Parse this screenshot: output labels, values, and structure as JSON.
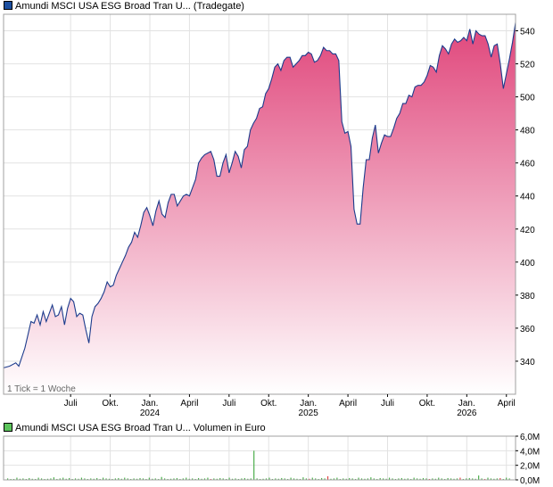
{
  "colors": {
    "price_line": "#1c3b8c",
    "price_fill_top": "#e0467b",
    "price_fill_bottom": "#ffffff",
    "grid": "#e2e2e2",
    "frame": "#a0a0a0",
    "volume_bar": "#4caf4c",
    "volume_bar_red": "#e04646",
    "legend_price": "#1c4fa0",
    "legend_volume": "#5cc45c"
  },
  "price_chart": {
    "legend": "Amundi MSCI USA ESG Broad Tran U... (Tradegate)",
    "tick_note": "1 Tick = 1 Woche"
  },
  "volume_chart": {
    "legend": "Amundi MSCI USA ESG Broad Tran U... Volumen in Euro"
  },
  "chart_data": [
    {
      "type": "area",
      "title": "Amundi MSCI USA ESG Broad Tran U... (Tradegate)",
      "ylim": [
        320,
        550
      ],
      "y_ticks": [
        340,
        360,
        380,
        400,
        420,
        440,
        460,
        480,
        500,
        520,
        540
      ],
      "x_ticks": [
        {
          "label": "Juli",
          "year": "",
          "t": 22
        },
        {
          "label": "Okt.",
          "year": "",
          "t": 35
        },
        {
          "label": "Jan.",
          "year": "2024",
          "t": 48
        },
        {
          "label": "April",
          "year": "",
          "t": 61
        },
        {
          "label": "Juli",
          "year": "",
          "t": 74
        },
        {
          "label": "Okt.",
          "year": "",
          "t": 87
        },
        {
          "label": "Jan.",
          "year": "2025",
          "t": 100
        },
        {
          "label": "April",
          "year": "",
          "t": 113
        },
        {
          "label": "Juli",
          "year": "",
          "t": 126
        },
        {
          "label": "Okt.",
          "year": "",
          "t": 139
        },
        {
          "label": "Jan.",
          "year": "2026",
          "t": 152
        },
        {
          "label": "April",
          "year": "",
          "t": 165
        }
      ],
      "t_range": [
        0,
        168
      ],
      "grid": true,
      "series": [
        {
          "points": [
            [
              0,
              336
            ],
            [
              2,
              337
            ],
            [
              4,
              339
            ],
            [
              5,
              337
            ],
            [
              7,
              348
            ],
            [
              8,
              356
            ],
            [
              9,
              364
            ],
            [
              10,
              363
            ],
            [
              11,
              368
            ],
            [
              12,
              362
            ],
            [
              13,
              370
            ],
            [
              14,
              364
            ],
            [
              16,
              374
            ],
            [
              17,
              367
            ],
            [
              18,
              368
            ],
            [
              19,
              373
            ],
            [
              20,
              362
            ],
            [
              21,
              372
            ],
            [
              22,
              378
            ],
            [
              23,
              376
            ],
            [
              24,
              367
            ],
            [
              25,
              369
            ],
            [
              26,
              368
            ],
            [
              27,
              359
            ],
            [
              28,
              351
            ],
            [
              29,
              367
            ],
            [
              30,
              373
            ],
            [
              31,
              375
            ],
            [
              32,
              378
            ],
            [
              33,
              382
            ],
            [
              34,
              388
            ],
            [
              35,
              385
            ],
            [
              36,
              386
            ],
            [
              37,
              392
            ],
            [
              38,
              396
            ],
            [
              39,
              400
            ],
            [
              40,
              404
            ],
            [
              41,
              409
            ],
            [
              42,
              412
            ],
            [
              43,
              418
            ],
            [
              44,
              415
            ],
            [
              45,
              422
            ],
            [
              46,
              430
            ],
            [
              47,
              433
            ],
            [
              48,
              428
            ],
            [
              49,
              422
            ],
            [
              50,
              431
            ],
            [
              51,
              437
            ],
            [
              52,
              429
            ],
            [
              53,
              427
            ],
            [
              54,
              436
            ],
            [
              55,
              441
            ],
            [
              56,
              441
            ],
            [
              57,
              434
            ],
            [
              58,
              437
            ],
            [
              59,
              440
            ],
            [
              60,
              441
            ],
            [
              61,
              440
            ],
            [
              62,
              445
            ],
            [
              63,
              450
            ],
            [
              64,
              460
            ],
            [
              65,
              463
            ],
            [
              66,
              465
            ],
            [
              67,
              466
            ],
            [
              68,
              467
            ],
            [
              69,
              462
            ],
            [
              70,
              452
            ],
            [
              71,
              452
            ],
            [
              72,
              460
            ],
            [
              73,
              465
            ],
            [
              74,
              454
            ],
            [
              75,
              460
            ],
            [
              76,
              467
            ],
            [
              77,
              464
            ],
            [
              78,
              457
            ],
            [
              79,
              468
            ],
            [
              80,
              470
            ],
            [
              81,
              480
            ],
            [
              82,
              484
            ],
            [
              83,
              487
            ],
            [
              84,
              493
            ],
            [
              85,
              494
            ],
            [
              86,
              502
            ],
            [
              87,
              505
            ],
            [
              88,
              511
            ],
            [
              89,
              518
            ],
            [
              90,
              520
            ],
            [
              91,
              516
            ],
            [
              92,
              522
            ],
            [
              93,
              524
            ],
            [
              94,
              524
            ],
            [
              95,
              518
            ],
            [
              96,
              520
            ],
            [
              97,
              522
            ],
            [
              98,
              525
            ],
            [
              99,
              525
            ],
            [
              100,
              527
            ],
            [
              101,
              526
            ],
            [
              102,
              521
            ],
            [
              103,
              522
            ],
            [
              104,
              525
            ],
            [
              105,
              530
            ],
            [
              106,
              528
            ],
            [
              107,
              528
            ],
            [
              108,
              526
            ],
            [
              109,
              526
            ],
            [
              110,
              522
            ],
            [
              111,
              485
            ],
            [
              112,
              478
            ],
            [
              113,
              479
            ],
            [
              114,
              470
            ],
            [
              115,
              432
            ],
            [
              116,
              423
            ],
            [
              117,
              423
            ],
            [
              118,
              445
            ],
            [
              119,
              462
            ],
            [
              120,
              462
            ],
            [
              121,
              475
            ],
            [
              122,
              483
            ],
            [
              123,
              466
            ],
            [
              124,
              472
            ],
            [
              125,
              477
            ],
            [
              126,
              476
            ],
            [
              127,
              476
            ],
            [
              128,
              481
            ],
            [
              129,
              487
            ],
            [
              130,
              490
            ],
            [
              131,
              496
            ],
            [
              132,
              496
            ],
            [
              133,
              501
            ],
            [
              134,
              500
            ],
            [
              135,
              506
            ],
            [
              136,
              507
            ],
            [
              137,
              507
            ],
            [
              138,
              509
            ],
            [
              139,
              513
            ],
            [
              140,
              519
            ],
            [
              141,
              518
            ],
            [
              142,
              515
            ],
            [
              143,
              525
            ],
            [
              144,
              531
            ],
            [
              145,
              529
            ],
            [
              146,
              526
            ],
            [
              147,
              532
            ],
            [
              148,
              535
            ],
            [
              149,
              533
            ],
            [
              150,
              534
            ],
            [
              151,
              536
            ],
            [
              152,
              534
            ],
            [
              153,
              541
            ],
            [
              154,
              532
            ],
            [
              155,
              540
            ],
            [
              156,
              538
            ],
            [
              157,
              537
            ],
            [
              158,
              537
            ],
            [
              159,
              532
            ],
            [
              160,
              524
            ],
            [
              161,
              531
            ],
            [
              162,
              532
            ],
            [
              163,
              520
            ],
            [
              164,
              505
            ],
            [
              165,
              514
            ],
            [
              166,
              523
            ],
            [
              167,
              533
            ],
            [
              168,
              545
            ]
          ]
        }
      ]
    },
    {
      "type": "bar",
      "title": "Amundi MSCI USA ESG Broad Tran U... Volumen in Euro",
      "ylim": [
        0,
        6
      ],
      "y_unit": "M",
      "y_ticks": [
        {
          "v": 0,
          "label": "0,0M"
        },
        {
          "v": 2,
          "label": "2,0M"
        },
        {
          "v": 4,
          "label": "4,0M"
        },
        {
          "v": 6,
          "label": "6,0M"
        }
      ],
      "series": [
        {
          "values": [
            0.2,
            0.1,
            0.1,
            0.3,
            0.15,
            0.2,
            0.1,
            0.25,
            0.15,
            0.1,
            0.3,
            0.2,
            0.1,
            0.15,
            0.2,
            0.35,
            0.1,
            0.2,
            0.3,
            0.15,
            0.25,
            0.1,
            0.2,
            0.15,
            0.3,
            0.2,
            0.1,
            0.2,
            0.15,
            0.25,
            0.1,
            0.3,
            0.2,
            0.15,
            0.1,
            0.2,
            0.25,
            0.15,
            0.3,
            0.2,
            0.1,
            0.2,
            0.15,
            0.25,
            0.2,
            0.1,
            0.3,
            0.15,
            0.2,
            0.1,
            0.4,
            0.2,
            0.1,
            0.15,
            0.2,
            0.25,
            0.1,
            0.2,
            0.3,
            0.15,
            0.2,
            0.1,
            0.25,
            0.15,
            0.2,
            0.3,
            0.1,
            0.2,
            0.15,
            0.25,
            0.2,
            0.1,
            0.3,
            0.15,
            0.2,
            0.1,
            0.2,
            0.25,
            0.15,
            0.2,
            4.0,
            0.2,
            0.1,
            0.15,
            0.2,
            0.3,
            0.1,
            0.2,
            0.15,
            0.25,
            0.2,
            0.1,
            0.3,
            0.2,
            0.15,
            0.1,
            0.35,
            0.2,
            0.15,
            0.3,
            0.2,
            0.1,
            0.25,
            0.2,
            0.5,
            0.15,
            0.2,
            0.3,
            0.1,
            0.2,
            0.15,
            0.25,
            0.2,
            0.1,
            0.3,
            0.2,
            0.15,
            0.2,
            0.35,
            0.2,
            0.1,
            0.25,
            0.2,
            0.15,
            0.3,
            0.2,
            0.1,
            0.2,
            0.25,
            0.15,
            0.2,
            0.1,
            0.3,
            0.2,
            0.15,
            0.25,
            0.2,
            0.1,
            0.2,
            0.15,
            0.3,
            0.2,
            0.1,
            0.25,
            0.2,
            0.15,
            0.2,
            0.3,
            0.1,
            0.2,
            0.25,
            0.2,
            0.15,
            0.6,
            0.2,
            0.1,
            0.3,
            0.2,
            0.15,
            0.2,
            0.25,
            0.1,
            0.3,
            0.2
          ],
          "red_indices": [
            66,
            98,
            104,
            137,
            147,
            155,
            160
          ]
        }
      ]
    }
  ]
}
